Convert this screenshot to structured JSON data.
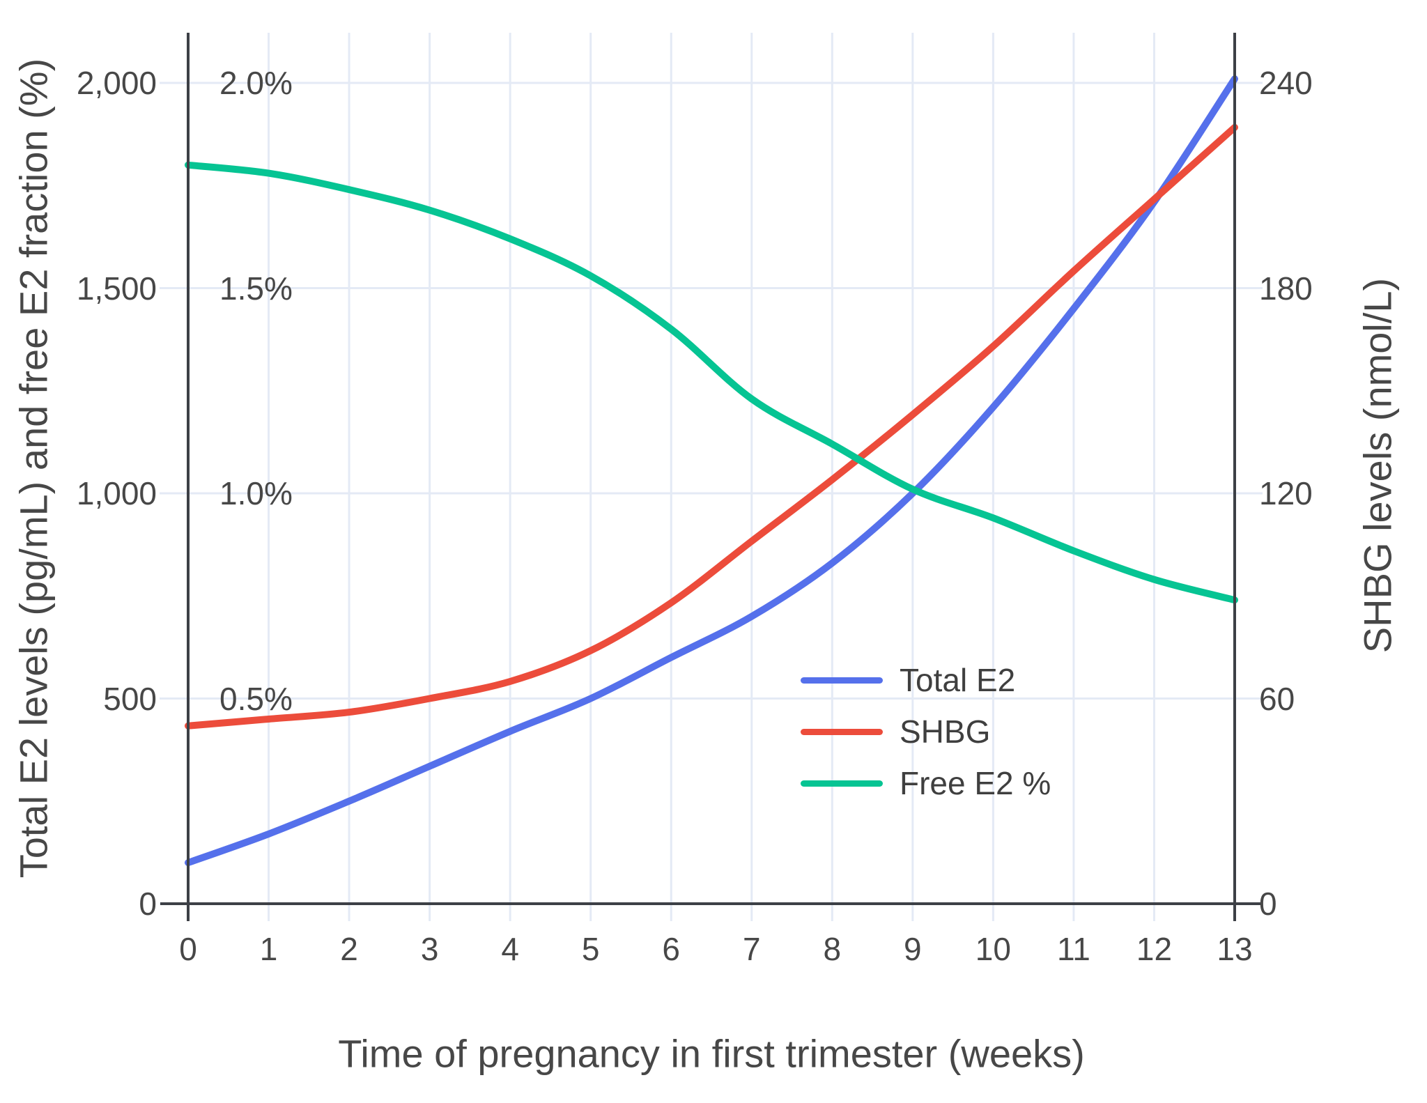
{
  "chart_data": {
    "type": "line",
    "title": "",
    "xlabel": "Time of pregnancy in first trimester (weeks)",
    "ylabel_left": "Total E2 levels (pg/mL) and free E2 fraction (%)",
    "ylabel_right": "SHBG levels (nmol/L)",
    "x": [
      0,
      1,
      2,
      3,
      4,
      5,
      6,
      7,
      8,
      9,
      10,
      11,
      12,
      13
    ],
    "x_range": [
      0,
      13
    ],
    "y_left_pg_range": [
      0,
      2000
    ],
    "y_left_pct_range": [
      0,
      2.0
    ],
    "y_right_range": [
      0,
      240
    ],
    "grid": true,
    "legend_position": "inside-lower-right",
    "series": [
      {
        "id": "total-e2",
        "name": "Total E2",
        "axis": "left-pg",
        "units": "pg/mL",
        "color": "#5570EB",
        "values": [
          100,
          170,
          250,
          335,
          420,
          500,
          600,
          700,
          830,
          1000,
          1210,
          1450,
          1710,
          2010
        ]
      },
      {
        "id": "shbg",
        "name": "SHBG",
        "axis": "right",
        "units": "nmol/L",
        "color": "#EC4C3B",
        "values": [
          52,
          54,
          56,
          60,
          65,
          74,
          88,
          106,
          124,
          143,
          163,
          185,
          206,
          227
        ]
      },
      {
        "id": "free-e2-pct",
        "name": "Free E2 %",
        "axis": "left-pct",
        "units": "%",
        "values": [
          1.8,
          1.78,
          1.74,
          1.69,
          1.62,
          1.53,
          1.4,
          1.23,
          1.12,
          1.01,
          0.94,
          0.86,
          0.79,
          0.74
        ],
        "color": "#06C493"
      }
    ]
  },
  "axes": {
    "left": {
      "title": "Total E2 levels (pg/mL) and free E2 fraction (%)",
      "tick_values": [
        0,
        500,
        1000,
        1500,
        2000
      ],
      "tick_labels": [
        "0",
        "500",
        "1,000",
        "1,500",
        "2,000"
      ]
    },
    "left_pct": {
      "tick_values": [
        500,
        1000,
        1500,
        2000
      ],
      "tick_labels": [
        "0.5%",
        "1.0%",
        "1.5%",
        "2.0%"
      ]
    },
    "right": {
      "title": "SHBG levels (nmol/L)",
      "tick_values": [
        0,
        60,
        120,
        180,
        240
      ],
      "tick_labels": [
        "0",
        "60",
        "120",
        "180",
        "240"
      ]
    },
    "x": {
      "title": "Time of pregnancy in first trimester (weeks)",
      "tick_values": [
        0,
        1,
        2,
        3,
        4,
        5,
        6,
        7,
        8,
        9,
        10,
        11,
        12,
        13
      ],
      "tick_labels": [
        "0",
        "1",
        "2",
        "3",
        "4",
        "5",
        "6",
        "7",
        "8",
        "9",
        "10",
        "11",
        "12",
        "13"
      ]
    }
  },
  "legend": {
    "items": [
      {
        "label": "Total E2"
      },
      {
        "label": "SHBG"
      },
      {
        "label": "Free E2 %"
      }
    ]
  }
}
